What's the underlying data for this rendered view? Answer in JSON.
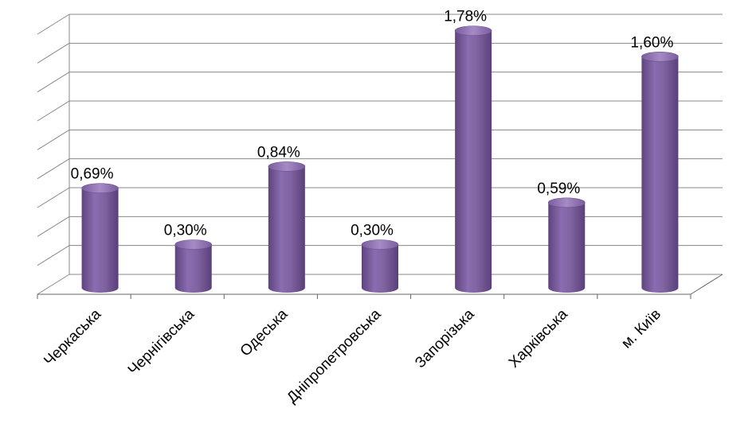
{
  "chart_data": {
    "type": "bar",
    "style": "3d-cylinder",
    "categories": [
      "Черкаська",
      "Чернігівська",
      "Одеська",
      "Дніпропетровська",
      "Запорізька",
      "Харківська",
      "м. Київ"
    ],
    "values": [
      0.69,
      0.3,
      0.84,
      0.3,
      1.78,
      0.59,
      1.6
    ],
    "data_labels": [
      "0,69%",
      "0,30%",
      "0,84%",
      "0,30%",
      "1,78%",
      "0,59%",
      "1,60%"
    ],
    "ylim": [
      0,
      1.8
    ],
    "grid": true,
    "legend": "none",
    "colors": {
      "bar": "#8064A2",
      "grid": "#888888"
    }
  }
}
